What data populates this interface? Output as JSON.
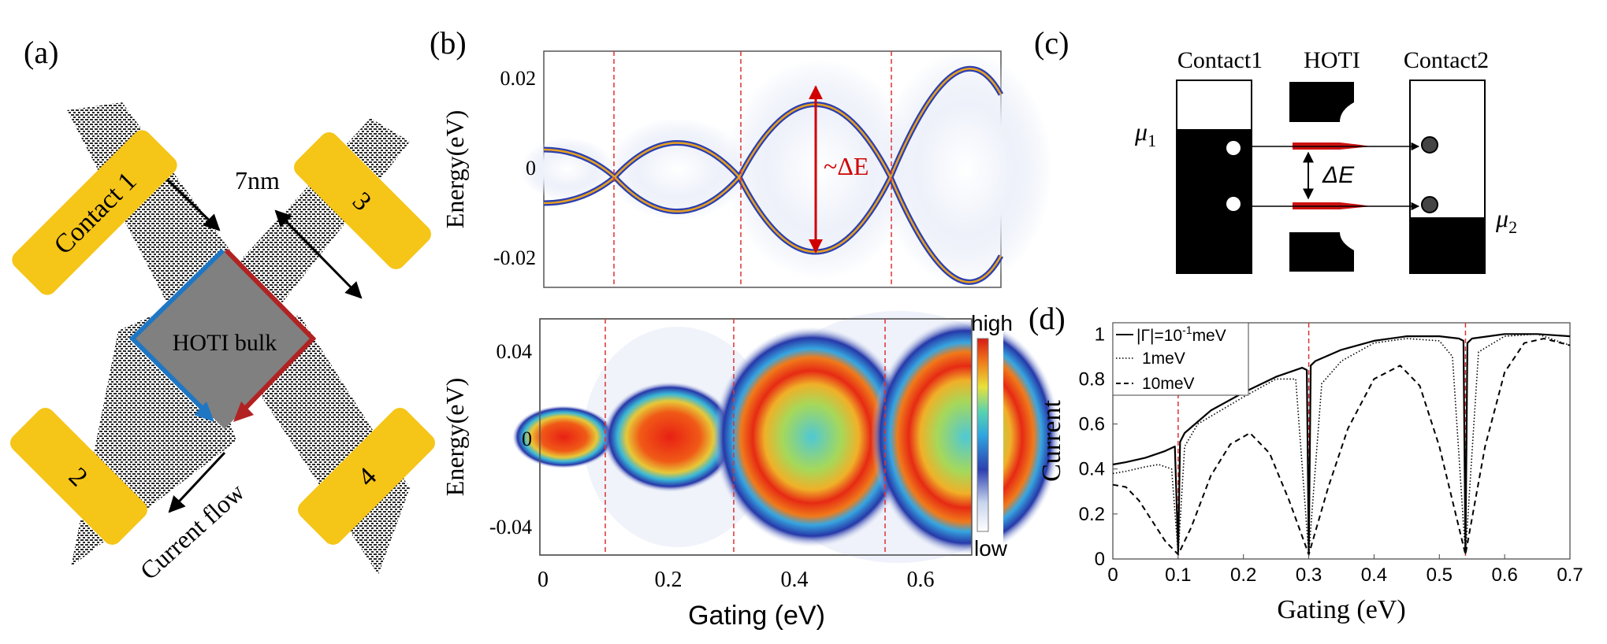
{
  "panel_labels": {
    "a": "(a)",
    "b": "(b)",
    "c": "(c)",
    "d": "(d)"
  },
  "panel_a": {
    "contacts": [
      "Contact 1",
      "3",
      "2",
      "4"
    ],
    "width_label": "7nm",
    "bulk_label": "HOTI bulk",
    "current_label": "Current flow",
    "colors": {
      "contact": "#f5c518",
      "bulk": "#808080",
      "left_edge": "#1f77c4",
      "right_edge": "#b22222"
    }
  },
  "panel_b": {
    "top_ylabel": "Energy(eV)",
    "bottom_ylabel": "Energy(eV)",
    "xlabel": "Gating (eV)",
    "top_yticks": [
      "0.02",
      "0",
      "-0.02"
    ],
    "bottom_yticks": [
      "0.04",
      "0",
      "-0.04"
    ],
    "xticks": [
      "0",
      "0.2",
      "0.4",
      "0.6"
    ],
    "gap_label": "~ΔE",
    "colorbar_high": "high",
    "colorbar_low": "low"
  },
  "panel_c": {
    "contact1": "Contact1",
    "hoti": "HOTI",
    "contact2": "Contact2",
    "mu1_sym": "μ",
    "mu1_sub": "1",
    "mu2_sym": "μ",
    "mu2_sub": "2",
    "delta": "ΔE"
  },
  "chart_data": [
    {
      "type": "line",
      "panel": "(d)",
      "xlabel": "Gating (eV)",
      "ylabel": "Current",
      "xlim": [
        0,
        0.7
      ],
      "ylim": [
        0,
        1.05
      ],
      "xticks": [
        "0",
        "0.1",
        "0.2",
        "0.3",
        "0.4",
        "0.5",
        "0.6",
        "0.7"
      ],
      "yticks": [
        "0",
        "0.2",
        "0.4",
        "0.6",
        "0.8",
        "1"
      ],
      "resonance_lines": [
        0.1,
        0.3,
        0.54
      ],
      "legend_position": "top-left",
      "series": [
        {
          "name": "|Γ|=10⁻¹meV",
          "legend_base": "|Γ|=10",
          "legend_sup": "-1",
          "legend_tail": "meV",
          "style": "solid",
          "x": [
            0,
            0.02,
            0.05,
            0.08,
            0.095,
            0.1,
            0.103,
            0.11,
            0.15,
            0.2,
            0.25,
            0.29,
            0.297,
            0.3,
            0.303,
            0.31,
            0.35,
            0.4,
            0.45,
            0.5,
            0.53,
            0.537,
            0.54,
            0.543,
            0.55,
            0.6,
            0.65,
            0.7
          ],
          "y": [
            0.42,
            0.43,
            0.45,
            0.48,
            0.5,
            0.03,
            0.52,
            0.56,
            0.66,
            0.74,
            0.81,
            0.85,
            0.84,
            0.03,
            0.86,
            0.88,
            0.93,
            0.97,
            0.99,
            0.99,
            0.98,
            0.97,
            0.03,
            0.96,
            0.98,
            1.0,
            1.0,
            0.99
          ]
        },
        {
          "name": "1meV",
          "style": "dotted",
          "x": [
            0,
            0.02,
            0.05,
            0.07,
            0.09,
            0.1,
            0.11,
            0.13,
            0.2,
            0.25,
            0.28,
            0.3,
            0.32,
            0.35,
            0.4,
            0.45,
            0.5,
            0.52,
            0.54,
            0.56,
            0.6,
            0.65,
            0.7
          ],
          "y": [
            0.38,
            0.39,
            0.41,
            0.42,
            0.4,
            0.02,
            0.5,
            0.6,
            0.72,
            0.8,
            0.8,
            0.02,
            0.78,
            0.88,
            0.96,
            0.98,
            0.97,
            0.9,
            0.02,
            0.92,
            0.99,
            1.0,
            0.95
          ]
        },
        {
          "name": "10meV",
          "style": "dashed",
          "x": [
            0,
            0.02,
            0.04,
            0.06,
            0.08,
            0.1,
            0.12,
            0.15,
            0.18,
            0.21,
            0.24,
            0.27,
            0.3,
            0.33,
            0.36,
            0.4,
            0.44,
            0.47,
            0.5,
            0.54,
            0.57,
            0.6,
            0.63,
            0.66,
            0.7
          ],
          "y": [
            0.33,
            0.32,
            0.26,
            0.17,
            0.08,
            0.02,
            0.14,
            0.37,
            0.51,
            0.56,
            0.47,
            0.26,
            0.02,
            0.32,
            0.58,
            0.8,
            0.86,
            0.77,
            0.5,
            0.02,
            0.5,
            0.83,
            0.96,
            0.98,
            0.95
          ]
        }
      ]
    }
  ]
}
